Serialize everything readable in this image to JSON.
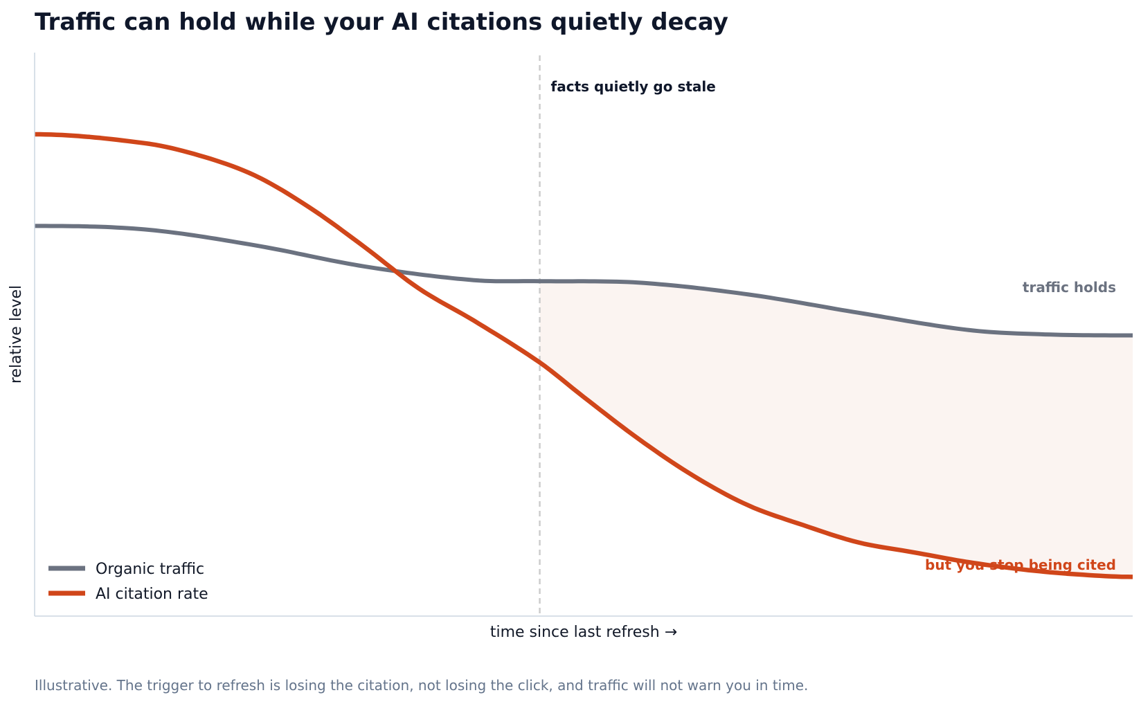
{
  "chart_data": {
    "type": "line",
    "title": "Traffic can hold while your AI citations quietly decay",
    "xlabel": "time since last refresh  →",
    "ylabel": "relative level",
    "footnote": "Illustrative. The trigger to refresh is losing the citation, not losing the click, and traffic will not warn you in time.",
    "xlim": [
      0,
      100
    ],
    "ylim": [
      0,
      100
    ],
    "grid": false,
    "legend": "bottom-left",
    "vline": {
      "x": 46,
      "label": "facts quietly go stale",
      "color": "#cccccc"
    },
    "shade_between": {
      "from_x": 46,
      "color": "#c2410c"
    },
    "series": [
      {
        "name": "Organic traffic",
        "color": "#6b7280",
        "x": [
          0,
          10,
          20,
          30,
          40,
          46,
          55,
          65,
          75,
          85,
          92,
          100
        ],
        "values": [
          68.2,
          67.5,
          64.3,
          60.0,
          57.2,
          57.0,
          56.7,
          54.3,
          50.6,
          47.1,
          46.2,
          46.0
        ]
      },
      {
        "name": "AI citation rate",
        "color": "#d0461a",
        "x": [
          0,
          10,
          15,
          20,
          25,
          30,
          35,
          40,
          46,
          50,
          55,
          60,
          65,
          70,
          75,
          80,
          85,
          90,
          95,
          100
        ],
        "values": [
          86.8,
          85.0,
          82.5,
          78.5,
          72.0,
          64.0,
          55.5,
          49.0,
          40.5,
          33.5,
          25.0,
          17.5,
          11.5,
          7.5,
          4.0,
          2.0,
          0.0,
          -1.5,
          -2.5,
          -3.0
        ]
      }
    ],
    "annotations": [
      {
        "text": "traffic holds",
        "color": "#6b7280"
      },
      {
        "text": "but you stop being cited",
        "color": "#d0461a"
      }
    ]
  }
}
